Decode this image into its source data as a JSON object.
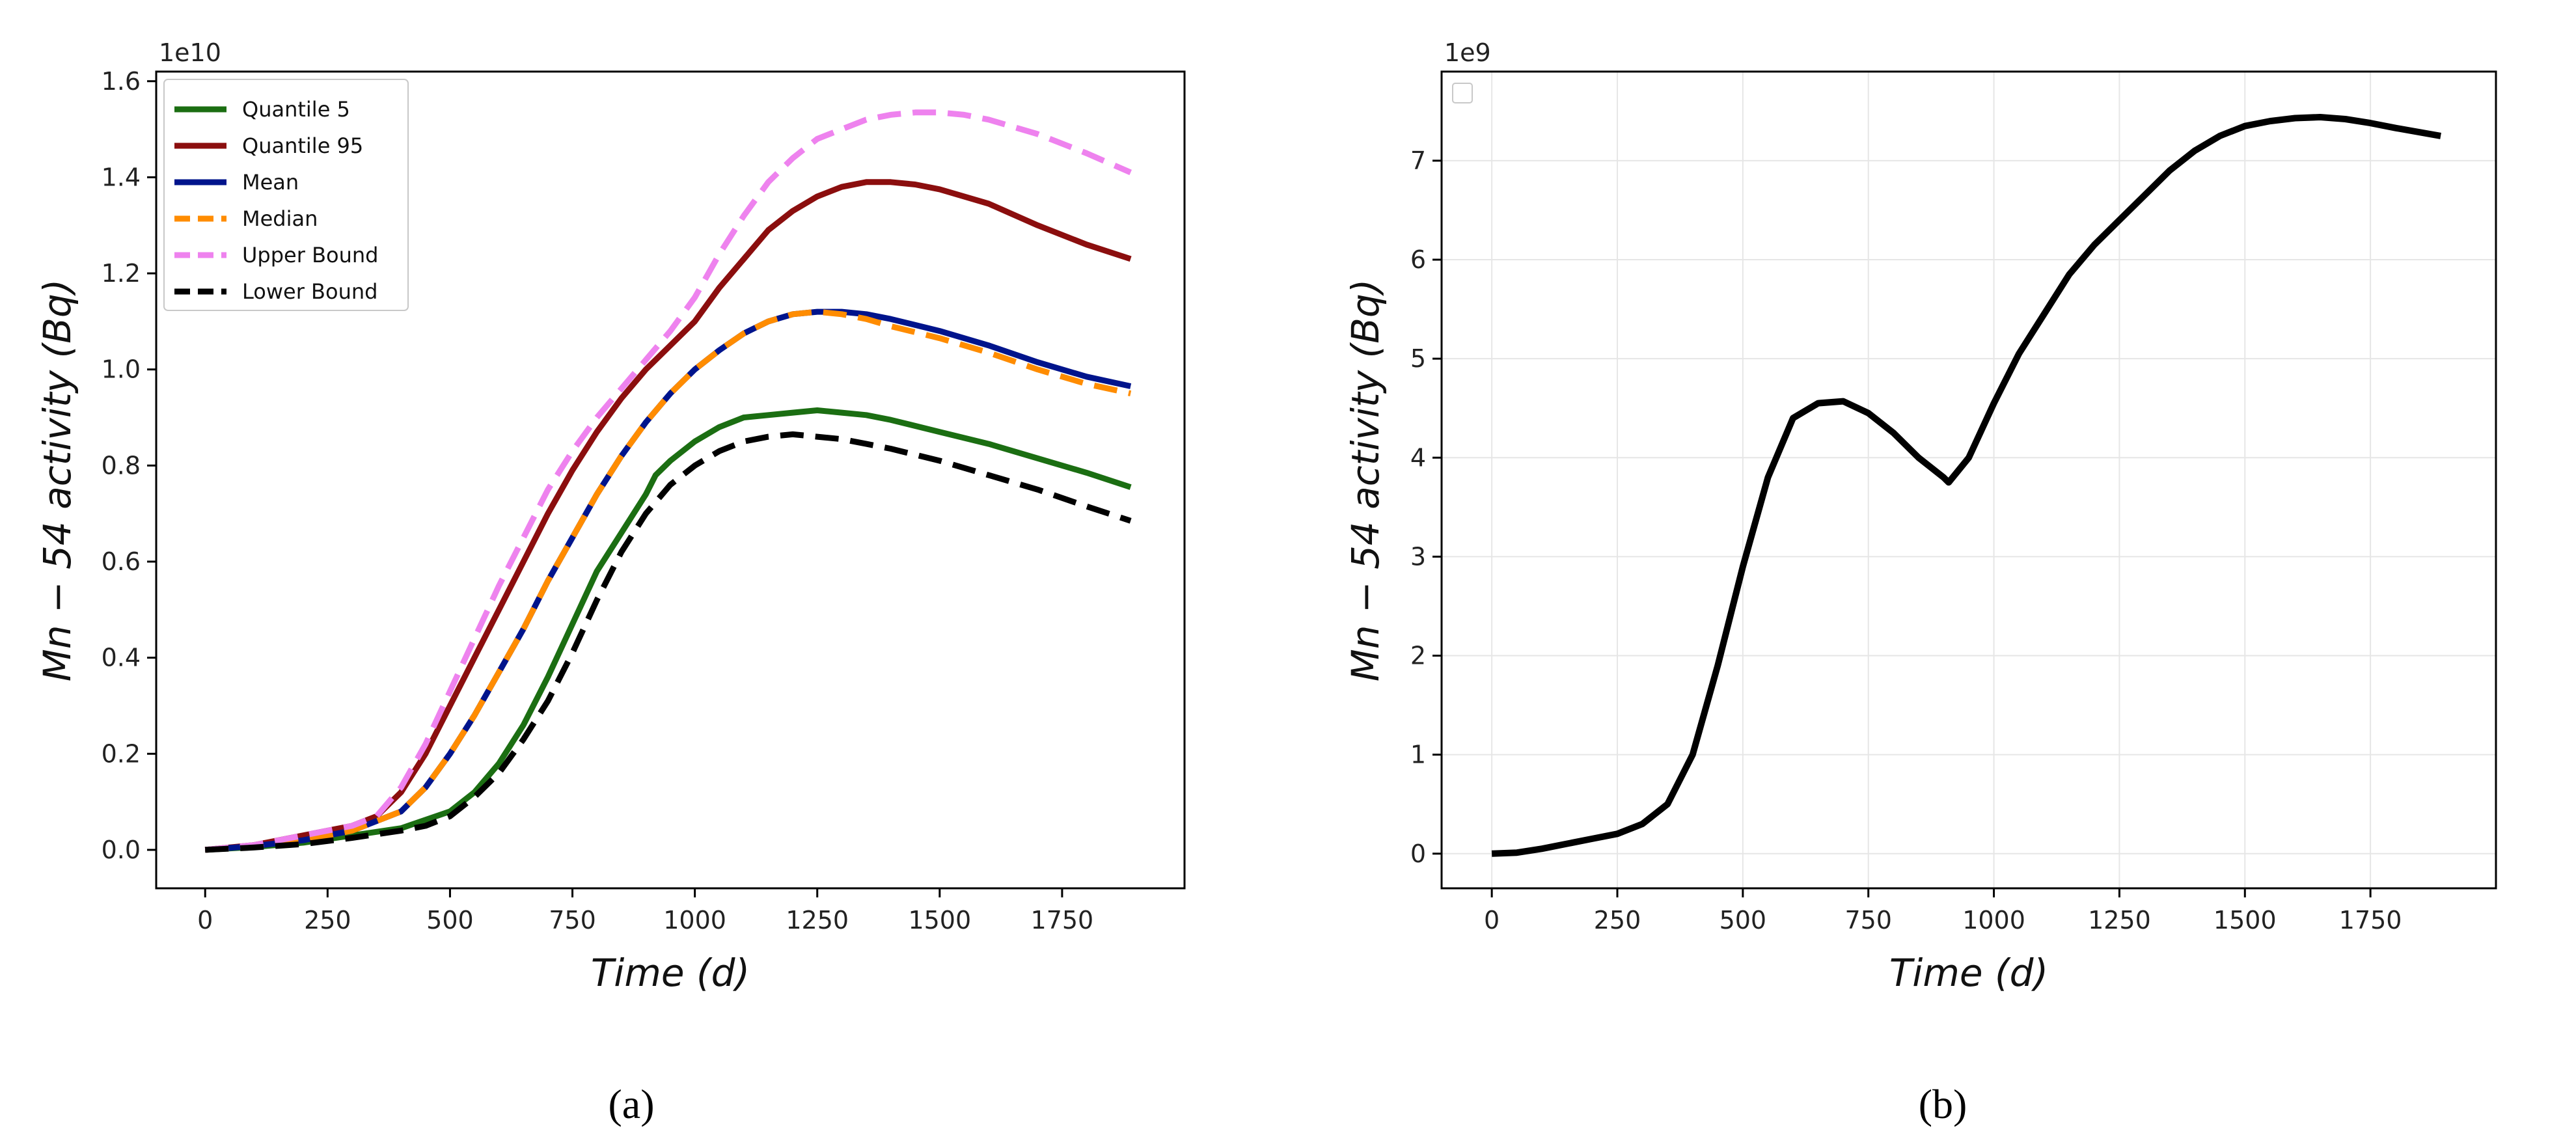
{
  "chart_data": [
    {
      "panel_label": "(a)",
      "type": "line",
      "xlabel": "Time (d)",
      "ylabel": "Mn − 54 activity (Bq)",
      "y_offset_text": "1e10",
      "xlim": [
        -100,
        2000
      ],
      "ylim": [
        -0.08,
        1.62
      ],
      "y_scale_factor": 10000000000.0,
      "xticks": [
        0,
        250,
        500,
        750,
        1000,
        1250,
        1500,
        1750
      ],
      "yticks": [
        "0.0",
        "0.2",
        "0.4",
        "0.6",
        "0.8",
        "1.0",
        "1.2",
        "1.4",
        "1.6"
      ],
      "grid": false,
      "legend_position": "upper-left",
      "series": [
        {
          "name": "Quantile 5",
          "color": "#1b6e12",
          "dash": "solid",
          "x": [
            0,
            100,
            200,
            300,
            400,
            500,
            550,
            600,
            650,
            700,
            750,
            800,
            850,
            900,
            920,
            950,
            1000,
            1050,
            1100,
            1150,
            1200,
            1250,
            1300,
            1350,
            1400,
            1500,
            1600,
            1700,
            1800,
            1890
          ],
          "y": [
            0.0,
            0.006,
            0.015,
            0.03,
            0.045,
            0.08,
            0.12,
            0.18,
            0.26,
            0.36,
            0.47,
            0.58,
            0.66,
            0.74,
            0.78,
            0.81,
            0.85,
            0.88,
            0.9,
            0.905,
            0.91,
            0.915,
            0.91,
            0.905,
            0.895,
            0.87,
            0.845,
            0.815,
            0.785,
            0.755
          ]
        },
        {
          "name": "Quantile 95",
          "color": "#8b0e0e",
          "dash": "solid",
          "x": [
            0,
            100,
            200,
            300,
            350,
            400,
            450,
            500,
            550,
            600,
            650,
            700,
            750,
            800,
            850,
            900,
            950,
            1000,
            1050,
            1100,
            1150,
            1200,
            1250,
            1300,
            1350,
            1400,
            1450,
            1500,
            1600,
            1700,
            1800,
            1890
          ],
          "y": [
            0.0,
            0.01,
            0.03,
            0.05,
            0.07,
            0.12,
            0.2,
            0.3,
            0.4,
            0.5,
            0.6,
            0.7,
            0.79,
            0.87,
            0.94,
            1.0,
            1.05,
            1.1,
            1.17,
            1.23,
            1.29,
            1.33,
            1.36,
            1.38,
            1.39,
            1.39,
            1.385,
            1.375,
            1.345,
            1.3,
            1.26,
            1.23
          ]
        },
        {
          "name": "Mean",
          "color": "#00148c",
          "dash": "solid",
          "x": [
            0,
            100,
            200,
            300,
            400,
            450,
            500,
            550,
            600,
            650,
            700,
            750,
            800,
            850,
            900,
            950,
            1000,
            1050,
            1100,
            1150,
            1200,
            1250,
            1300,
            1350,
            1400,
            1500,
            1600,
            1700,
            1800,
            1890
          ],
          "y": [
            0.0,
            0.008,
            0.02,
            0.04,
            0.08,
            0.13,
            0.2,
            0.28,
            0.37,
            0.46,
            0.56,
            0.65,
            0.74,
            0.82,
            0.89,
            0.95,
            1.0,
            1.04,
            1.075,
            1.1,
            1.115,
            1.12,
            1.12,
            1.115,
            1.105,
            1.08,
            1.05,
            1.015,
            0.985,
            0.965
          ]
        },
        {
          "name": "Median",
          "color": "#ff8c00",
          "dash": "dashed",
          "x": [
            0,
            100,
            200,
            300,
            400,
            450,
            500,
            550,
            600,
            650,
            700,
            750,
            800,
            850,
            900,
            950,
            1000,
            1050,
            1100,
            1150,
            1200,
            1250,
            1300,
            1350,
            1400,
            1500,
            1600,
            1700,
            1800,
            1890
          ],
          "y": [
            0.0,
            0.008,
            0.02,
            0.04,
            0.08,
            0.13,
            0.2,
            0.28,
            0.37,
            0.46,
            0.56,
            0.65,
            0.74,
            0.82,
            0.89,
            0.95,
            1.0,
            1.04,
            1.075,
            1.1,
            1.115,
            1.12,
            1.115,
            1.105,
            1.09,
            1.065,
            1.035,
            1.0,
            0.97,
            0.95
          ]
        },
        {
          "name": "Upper Bound",
          "color": "#ee82ee",
          "dash": "dashed",
          "x": [
            0,
            100,
            200,
            300,
            350,
            400,
            450,
            500,
            550,
            600,
            650,
            700,
            750,
            800,
            850,
            900,
            950,
            1000,
            1050,
            1100,
            1150,
            1200,
            1250,
            1300,
            1350,
            1400,
            1450,
            1500,
            1550,
            1600,
            1700,
            1800,
            1890
          ],
          "y": [
            0.0,
            0.01,
            0.03,
            0.05,
            0.07,
            0.13,
            0.22,
            0.33,
            0.44,
            0.55,
            0.65,
            0.75,
            0.83,
            0.9,
            0.96,
            1.02,
            1.08,
            1.15,
            1.24,
            1.32,
            1.39,
            1.44,
            1.48,
            1.5,
            1.52,
            1.53,
            1.535,
            1.535,
            1.53,
            1.52,
            1.49,
            1.45,
            1.41
          ]
        },
        {
          "name": "Lower Bound",
          "color": "#000000",
          "dash": "dashed",
          "x": [
            0,
            100,
            200,
            300,
            400,
            450,
            500,
            550,
            600,
            650,
            700,
            750,
            800,
            850,
            900,
            950,
            1000,
            1050,
            1100,
            1150,
            1200,
            1250,
            1300,
            1350,
            1400,
            1500,
            1600,
            1700,
            1800,
            1890
          ],
          "y": [
            0.0,
            0.005,
            0.012,
            0.025,
            0.04,
            0.05,
            0.07,
            0.11,
            0.16,
            0.23,
            0.31,
            0.41,
            0.52,
            0.62,
            0.7,
            0.76,
            0.8,
            0.83,
            0.85,
            0.86,
            0.865,
            0.86,
            0.855,
            0.845,
            0.835,
            0.81,
            0.78,
            0.75,
            0.715,
            0.685
          ]
        }
      ]
    },
    {
      "panel_label": "(b)",
      "type": "line",
      "xlabel": "Time (d)",
      "ylabel": "Mn − 54 activity (Bq)",
      "y_offset_text": "1e9",
      "xlim": [
        -100,
        2000
      ],
      "ylim": [
        -0.35,
        7.9
      ],
      "y_scale_factor": 1000000000.0,
      "xticks": [
        0,
        250,
        500,
        750,
        1000,
        1250,
        1500,
        1750
      ],
      "yticks": [
        "0",
        "1",
        "2",
        "3",
        "4",
        "5",
        "6",
        "7"
      ],
      "grid": true,
      "legend_position": "upper-left",
      "series": [
        {
          "color": "#000000",
          "dash": "solid",
          "x": [
            0,
            50,
            100,
            150,
            200,
            250,
            300,
            350,
            400,
            450,
            500,
            550,
            600,
            650,
            700,
            750,
            800,
            850,
            900,
            910,
            950,
            1000,
            1050,
            1100,
            1150,
            1200,
            1250,
            1300,
            1350,
            1400,
            1450,
            1500,
            1550,
            1600,
            1650,
            1700,
            1750,
            1800,
            1890
          ],
          "y": [
            0.0,
            0.01,
            0.05,
            0.1,
            0.15,
            0.2,
            0.3,
            0.5,
            1.0,
            1.9,
            2.9,
            3.8,
            4.4,
            4.55,
            4.57,
            4.45,
            4.25,
            4.0,
            3.8,
            3.75,
            4.0,
            4.55,
            5.05,
            5.45,
            5.85,
            6.15,
            6.4,
            6.65,
            6.9,
            7.1,
            7.25,
            7.35,
            7.4,
            7.43,
            7.44,
            7.42,
            7.38,
            7.33,
            7.25
          ]
        }
      ]
    }
  ]
}
